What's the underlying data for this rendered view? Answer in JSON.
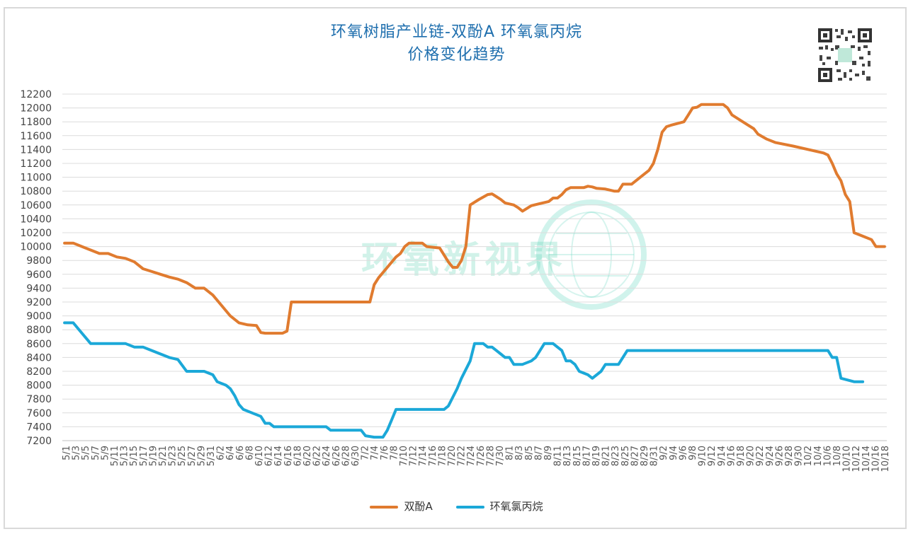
{
  "chart_data": {
    "type": "line",
    "title_line1": "环氧树脂产业链-双酚A 环氧氯丙烷",
    "title_line2": "价格变化趋势",
    "ylim": [
      7200,
      12200
    ],
    "yticks": [
      7200,
      7400,
      7600,
      7800,
      8000,
      8200,
      8400,
      8600,
      8800,
      9000,
      9200,
      9400,
      9600,
      9800,
      10000,
      10200,
      10400,
      10600,
      10800,
      11000,
      11200,
      11400,
      11600,
      11800,
      12000,
      12200
    ],
    "x_tick_labels": [
      "5/1",
      "5/3",
      "5/5",
      "5/7",
      "5/9",
      "5/11",
      "5/13",
      "5/15",
      "5/17",
      "5/19",
      "5/21",
      "5/23",
      "5/25",
      "5/27",
      "5/29",
      "5/31",
      "6/2",
      "6/4",
      "6/6",
      "6/8",
      "6/10",
      "6/12",
      "6/14",
      "6/16",
      "6/18",
      "6/20",
      "6/22",
      "6/24",
      "6/26",
      "6/28",
      "6/30",
      "7/2",
      "7/4",
      "7/6",
      "7/8",
      "7/10",
      "7/12",
      "7/14",
      "7/16",
      "7/18",
      "7/20",
      "7/22",
      "7/24",
      "7/26",
      "7/28",
      "7/30",
      "8/1",
      "8/3",
      "8/5",
      "8/7",
      "8/9",
      "8/11",
      "8/13",
      "8/15",
      "8/17",
      "8/19",
      "8/21",
      "8/23",
      "8/25",
      "8/27",
      "8/29",
      "8/31",
      "9/2",
      "9/4",
      "9/6",
      "9/8",
      "9/10",
      "9/12",
      "9/14",
      "9/16",
      "9/18",
      "9/20",
      "9/22",
      "9/24",
      "9/26",
      "9/28",
      "9/30",
      "10/2",
      "10/4",
      "10/6",
      "10/8",
      "10/10",
      "10/12",
      "10/14",
      "10/16",
      "10/18"
    ],
    "series": [
      {
        "name": "双酚A",
        "color": "#e07b2f",
        "points": [
          [
            0,
            10050
          ],
          [
            2,
            10050
          ],
          [
            4,
            10000
          ],
          [
            6,
            9950
          ],
          [
            8,
            9900
          ],
          [
            10,
            9900
          ],
          [
            12,
            9850
          ],
          [
            14,
            9830
          ],
          [
            16,
            9780
          ],
          [
            18,
            9680
          ],
          [
            20,
            9640
          ],
          [
            22,
            9600
          ],
          [
            24,
            9560
          ],
          [
            26,
            9530
          ],
          [
            28,
            9480
          ],
          [
            30,
            9400
          ],
          [
            32,
            9400
          ],
          [
            34,
            9300
          ],
          [
            36,
            9150
          ],
          [
            38,
            9000
          ],
          [
            40,
            8900
          ],
          [
            42,
            8870
          ],
          [
            44,
            8860
          ],
          [
            45,
            8760
          ],
          [
            46,
            8750
          ],
          [
            50,
            8750
          ],
          [
            51,
            8780
          ],
          [
            52,
            9200
          ],
          [
            54,
            9200
          ],
          [
            70,
            9200
          ],
          [
            71,
            9450
          ],
          [
            72,
            9550
          ],
          [
            74,
            9700
          ],
          [
            76,
            9850
          ],
          [
            77,
            9900
          ],
          [
            78,
            10000
          ],
          [
            79,
            10050
          ],
          [
            82,
            10050
          ],
          [
            83,
            10000
          ],
          [
            86,
            9980
          ],
          [
            88,
            9780
          ],
          [
            89,
            9700
          ],
          [
            90,
            9700
          ],
          [
            91,
            9800
          ],
          [
            92,
            10000
          ],
          [
            93,
            10600
          ],
          [
            95,
            10680
          ],
          [
            97,
            10750
          ],
          [
            98,
            10760
          ],
          [
            99,
            10720
          ],
          [
            100,
            10680
          ],
          [
            101,
            10630
          ],
          [
            103,
            10600
          ],
          [
            104,
            10560
          ],
          [
            105,
            10510
          ],
          [
            106,
            10550
          ],
          [
            107,
            10590
          ],
          [
            109,
            10620
          ],
          [
            111,
            10650
          ],
          [
            112,
            10700
          ],
          [
            113,
            10700
          ],
          [
            114,
            10750
          ],
          [
            115,
            10820
          ],
          [
            116,
            10850
          ],
          [
            119,
            10850
          ],
          [
            120,
            10870
          ],
          [
            121,
            10860
          ],
          [
            122,
            10840
          ],
          [
            124,
            10830
          ],
          [
            126,
            10800
          ],
          [
            127,
            10800
          ],
          [
            128,
            10900
          ],
          [
            130,
            10900
          ],
          [
            132,
            11000
          ],
          [
            134,
            11100
          ],
          [
            135,
            11200
          ],
          [
            136,
            11400
          ],
          [
            137,
            11650
          ],
          [
            138,
            11730
          ],
          [
            139,
            11750
          ],
          [
            142,
            11800
          ],
          [
            143,
            11900
          ],
          [
            144,
            12000
          ],
          [
            145,
            12010
          ],
          [
            146,
            12050
          ],
          [
            151,
            12050
          ],
          [
            152,
            12000
          ],
          [
            153,
            11900
          ],
          [
            156,
            11780
          ],
          [
            158,
            11700
          ],
          [
            159,
            11620
          ],
          [
            161,
            11550
          ],
          [
            163,
            11500
          ],
          [
            167,
            11450
          ],
          [
            174,
            11350
          ],
          [
            175,
            11320
          ],
          [
            176,
            11200
          ],
          [
            177,
            11050
          ],
          [
            178,
            10950
          ],
          [
            179,
            10750
          ],
          [
            180,
            10650
          ],
          [
            181,
            10200
          ],
          [
            183,
            10150
          ],
          [
            185,
            10100
          ],
          [
            186,
            10000
          ],
          [
            188,
            10000
          ]
        ]
      },
      {
        "name": "环氧氯丙烷",
        "color": "#1ba8d8",
        "points": [
          [
            0,
            8900
          ],
          [
            2,
            8900
          ],
          [
            4,
            8750
          ],
          [
            6,
            8600
          ],
          [
            8,
            8600
          ],
          [
            14,
            8600
          ],
          [
            16,
            8550
          ],
          [
            18,
            8550
          ],
          [
            20,
            8500
          ],
          [
            22,
            8450
          ],
          [
            24,
            8400
          ],
          [
            26,
            8370
          ],
          [
            28,
            8200
          ],
          [
            32,
            8200
          ],
          [
            34,
            8150
          ],
          [
            35,
            8050
          ],
          [
            37,
            8000
          ],
          [
            38,
            7950
          ],
          [
            39,
            7850
          ],
          [
            40,
            7720
          ],
          [
            41,
            7650
          ],
          [
            43,
            7600
          ],
          [
            45,
            7550
          ],
          [
            46,
            7450
          ],
          [
            47,
            7450
          ],
          [
            48,
            7400
          ],
          [
            60,
            7400
          ],
          [
            61,
            7350
          ],
          [
            68,
            7350
          ],
          [
            69,
            7270
          ],
          [
            71,
            7250
          ],
          [
            72,
            7250
          ],
          [
            73,
            7250
          ],
          [
            74,
            7350
          ],
          [
            75,
            7500
          ],
          [
            76,
            7650
          ],
          [
            87,
            7650
          ],
          [
            88,
            7700
          ],
          [
            90,
            7950
          ],
          [
            91,
            8100
          ],
          [
            93,
            8350
          ],
          [
            94,
            8600
          ],
          [
            96,
            8600
          ],
          [
            97,
            8550
          ],
          [
            98,
            8550
          ],
          [
            99,
            8500
          ],
          [
            100,
            8450
          ],
          [
            101,
            8400
          ],
          [
            102,
            8400
          ],
          [
            103,
            8300
          ],
          [
            105,
            8300
          ],
          [
            107,
            8350
          ],
          [
            108,
            8400
          ],
          [
            109,
            8500
          ],
          [
            110,
            8600
          ],
          [
            112,
            8600
          ],
          [
            113,
            8550
          ],
          [
            114,
            8500
          ],
          [
            115,
            8350
          ],
          [
            116,
            8350
          ],
          [
            117,
            8300
          ],
          [
            118,
            8200
          ],
          [
            120,
            8150
          ],
          [
            121,
            8100
          ],
          [
            123,
            8200
          ],
          [
            124,
            8300
          ],
          [
            127,
            8300
          ],
          [
            128,
            8400
          ],
          [
            129,
            8500
          ],
          [
            175,
            8500
          ],
          [
            176,
            8400
          ],
          [
            177,
            8400
          ],
          [
            178,
            8100
          ],
          [
            181,
            8050
          ],
          [
            183,
            8050
          ]
        ]
      }
    ],
    "x_count": 189,
    "watermark": "环氧新视界"
  },
  "legend": {
    "series1": "双酚A",
    "series2": "环氧氯丙烷"
  }
}
